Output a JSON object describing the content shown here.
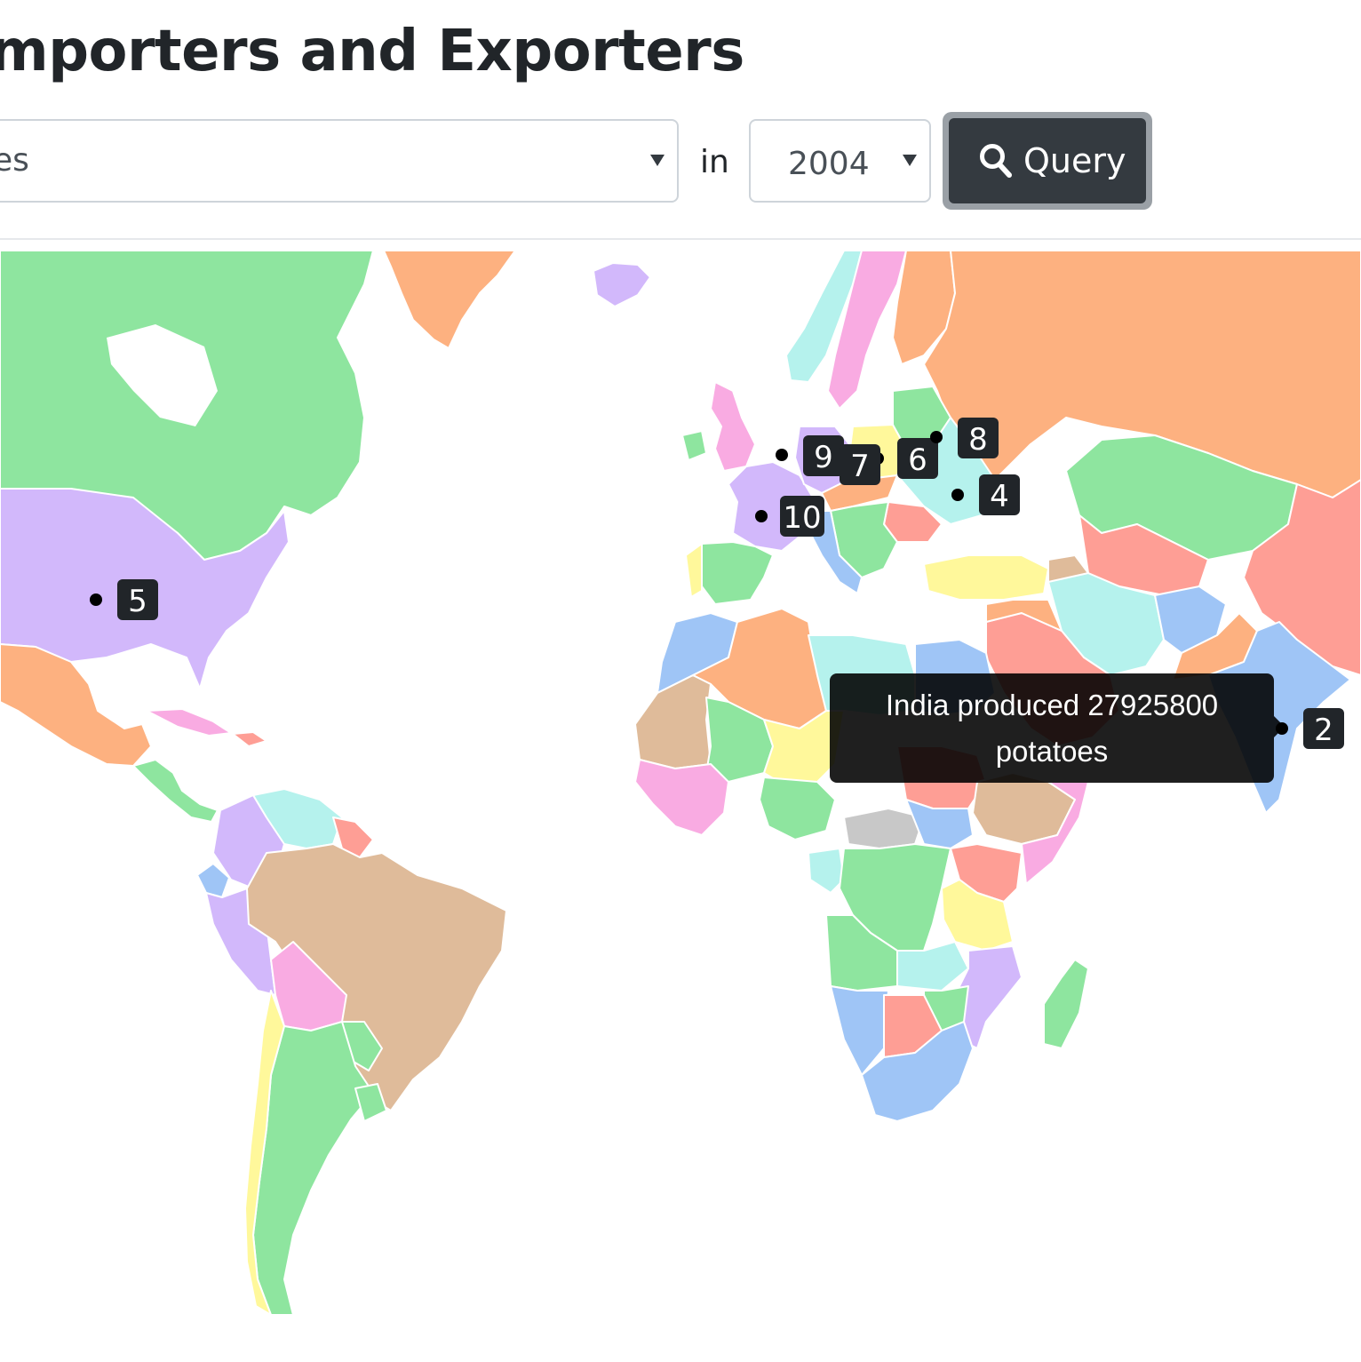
{
  "header": {
    "title": "mporters and Exporters"
  },
  "form": {
    "product_value": "es",
    "in_label": "in",
    "year_value": "2004",
    "query_label": "Query"
  },
  "tooltip": {
    "line1": "India produced 27925800",
    "line2": "potatoes"
  },
  "markers": [
    {
      "label": "2"
    },
    {
      "label": "4"
    },
    {
      "label": "5"
    },
    {
      "label": "6"
    },
    {
      "label": "7"
    },
    {
      "label": "8"
    },
    {
      "label": "9"
    },
    {
      "label": "10"
    }
  ],
  "colors": {
    "map_palette": [
      "#8ee59f",
      "#d2b8fb",
      "#fdb180",
      "#f9abe2",
      "#fe9e95",
      "#9fc5f6",
      "#b5f2ed",
      "#fff89b",
      "#dfbb9a",
      "#c8c8c8"
    ],
    "button_bg": "#343a40"
  },
  "icons": {
    "query_icon": "search-icon"
  }
}
